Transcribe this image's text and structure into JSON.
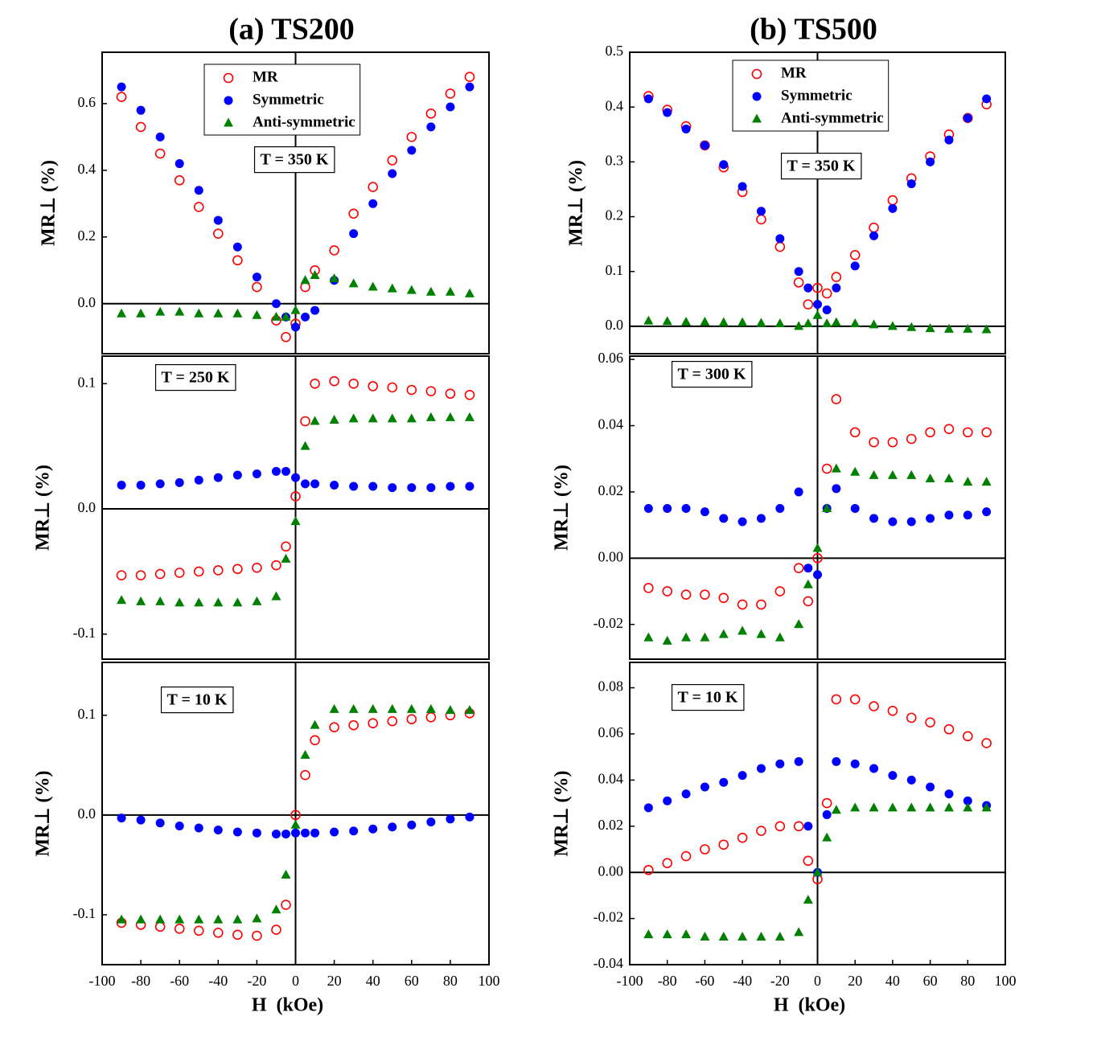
{
  "chart_data": [
    {
      "type": "scatter",
      "title": "(a)  TS200",
      "ylabel": "MR⊥ (%)",
      "annotation": "T = 350 K",
      "legend": "upper center",
      "x": [
        -90,
        -80,
        -70,
        -60,
        -50,
        -40,
        -30,
        -20,
        -10,
        -5,
        0,
        5,
        10,
        20,
        30,
        40,
        50,
        60,
        70,
        80,
        90
      ],
      "xlim": [
        -100,
        100
      ],
      "ylim": [
        -0.15,
        0.754
      ],
      "yticks": [
        {
          "value": 0,
          "label": "0.0"
        },
        0.2,
        0.4,
        0.6
      ],
      "series": [
        {
          "name": "MR",
          "color": "#ff0000",
          "marker": "open-circle",
          "values": [
            0.62,
            0.53,
            0.45,
            0.37,
            0.29,
            0.21,
            0.13,
            0.05,
            -0.05,
            -0.1,
            -0.06,
            0.05,
            0.1,
            0.16,
            0.27,
            0.35,
            0.43,
            0.5,
            0.57,
            0.63,
            0.68
          ]
        },
        {
          "name": "Symmetric",
          "color": "#0000ff",
          "marker": "circle",
          "values": [
            0.65,
            0.58,
            0.5,
            0.42,
            0.34,
            0.25,
            0.17,
            0.08,
            0.0,
            -0.04,
            -0.07,
            -0.04,
            -0.02,
            0.07,
            0.21,
            0.3,
            0.39,
            0.46,
            0.53,
            0.59,
            0.65
          ]
        },
        {
          "name": "Anti-symmetric",
          "color": "#008000",
          "marker": "triangle",
          "values": [
            -0.03,
            -0.03,
            -0.025,
            -0.025,
            -0.03,
            -0.03,
            -0.03,
            -0.035,
            -0.04,
            -0.04,
            -0.02,
            0.07,
            0.085,
            0.075,
            0.06,
            0.05,
            0.045,
            0.04,
            0.035,
            0.035,
            0.03
          ]
        }
      ]
    },
    {
      "type": "scatter",
      "ylabel": "MR⊥ (%)",
      "annotation": "T = 250 K",
      "x": [
        -90,
        -80,
        -70,
        -60,
        -50,
        -40,
        -30,
        -20,
        -10,
        -5,
        0,
        5,
        10,
        20,
        30,
        40,
        50,
        60,
        70,
        80,
        90
      ],
      "xlim": [
        -100,
        100
      ],
      "ylim": [
        -0.12,
        0.122
      ],
      "yticks": [
        -0.1,
        {
          "value": 0,
          "label": "0.0"
        },
        0.1
      ],
      "series": [
        {
          "color": "#ff0000",
          "marker": "open-circle",
          "values": [
            -0.053,
            -0.053,
            -0.052,
            -0.051,
            -0.05,
            -0.049,
            -0.048,
            -0.047,
            -0.045,
            -0.03,
            0.01,
            0.07,
            0.1,
            0.102,
            0.1,
            0.098,
            0.097,
            0.095,
            0.094,
            0.092,
            0.091
          ]
        },
        {
          "color": "#0000ff",
          "marker": "circle",
          "values": [
            0.019,
            0.019,
            0.02,
            0.021,
            0.023,
            0.025,
            0.027,
            0.028,
            0.03,
            0.03,
            0.025,
            0.02,
            0.02,
            0.019,
            0.018,
            0.018,
            0.017,
            0.017,
            0.017,
            0.018,
            0.018
          ]
        },
        {
          "color": "#008000",
          "marker": "triangle",
          "values": [
            -0.073,
            -0.074,
            -0.074,
            -0.075,
            -0.075,
            -0.075,
            -0.075,
            -0.074,
            -0.07,
            -0.04,
            -0.01,
            0.05,
            0.07,
            0.071,
            0.072,
            0.072,
            0.072,
            0.072,
            0.073,
            0.073,
            0.073
          ]
        }
      ]
    },
    {
      "type": "scatter",
      "ylabel": "MR⊥ (%)",
      "xlabel": "H  (kOe)",
      "annotation": "T = 10 K",
      "x": [
        -90,
        -80,
        -70,
        -60,
        -50,
        -40,
        -30,
        -20,
        -10,
        -5,
        0,
        5,
        10,
        20,
        30,
        40,
        50,
        60,
        70,
        80,
        90
      ],
      "xlim": [
        -100,
        100
      ],
      "xticks": [
        -100,
        -80,
        -60,
        -40,
        -20,
        0,
        20,
        40,
        60,
        80,
        100
      ],
      "ylim": [
        -0.15,
        0.153
      ],
      "yticks": [
        -0.1,
        {
          "value": 0,
          "label": "0.0"
        },
        0.1
      ],
      "series": [
        {
          "color": "#ff0000",
          "marker": "open-circle",
          "values": [
            -0.108,
            -0.11,
            -0.112,
            -0.114,
            -0.116,
            -0.118,
            -0.12,
            -0.121,
            -0.115,
            -0.09,
            0.0,
            0.04,
            0.075,
            0.088,
            0.09,
            0.092,
            0.094,
            0.096,
            0.098,
            0.1,
            0.102
          ]
        },
        {
          "color": "#0000ff",
          "marker": "circle",
          "values": [
            -0.003,
            -0.005,
            -0.008,
            -0.011,
            -0.013,
            -0.015,
            -0.017,
            -0.018,
            -0.019,
            -0.019,
            -0.018,
            -0.018,
            -0.018,
            -0.017,
            -0.016,
            -0.014,
            -0.012,
            -0.01,
            -0.007,
            -0.004,
            -0.002
          ]
        },
        {
          "color": "#008000",
          "marker": "triangle",
          "values": [
            -0.105,
            -0.105,
            -0.105,
            -0.105,
            -0.105,
            -0.105,
            -0.105,
            -0.104,
            -0.095,
            -0.06,
            -0.01,
            0.06,
            0.09,
            0.106,
            0.106,
            0.106,
            0.106,
            0.106,
            0.106,
            0.105,
            0.105
          ]
        }
      ]
    },
    {
      "type": "scatter",
      "title": "(b)  TS500",
      "ylabel": "MR⊥ (%)",
      "annotation": "T = 350 K",
      "legend": "upper center",
      "x": [
        -90,
        -80,
        -70,
        -60,
        -50,
        -40,
        -30,
        -20,
        -10,
        -5,
        0,
        5,
        10,
        20,
        30,
        40,
        50,
        60,
        70,
        80,
        90
      ],
      "xlim": [
        -100,
        100
      ],
      "ylim": [
        -0.05,
        0.5
      ],
      "yticks": [
        {
          "value": 0,
          "label": "0.0"
        },
        0.1,
        0.2,
        0.3,
        0.4,
        0.5
      ],
      "series": [
        {
          "name": "MR",
          "color": "#ff0000",
          "marker": "open-circle",
          "values": [
            0.42,
            0.395,
            0.365,
            0.33,
            0.29,
            0.245,
            0.195,
            0.145,
            0.08,
            0.04,
            0.07,
            0.06,
            0.09,
            0.13,
            0.18,
            0.23,
            0.27,
            0.31,
            0.35,
            0.38,
            0.405
          ]
        },
        {
          "name": "Symmetric",
          "color": "#0000ff",
          "marker": "circle",
          "values": [
            0.415,
            0.39,
            0.36,
            0.33,
            0.295,
            0.255,
            0.21,
            0.16,
            0.1,
            0.07,
            0.04,
            0.03,
            0.07,
            0.11,
            0.165,
            0.215,
            0.26,
            0.3,
            0.34,
            0.38,
            0.415
          ]
        },
        {
          "name": "Anti-symmetric",
          "color": "#008000",
          "marker": "triangle",
          "values": [
            0.01,
            0.009,
            0.008,
            0.008,
            0.007,
            0.007,
            0.006,
            0.005,
            0.0,
            0.005,
            0.02,
            0.005,
            0.007,
            0.005,
            0.003,
            0.0,
            -0.002,
            -0.004,
            -0.005,
            -0.005,
            -0.006
          ]
        }
      ]
    },
    {
      "type": "scatter",
      "ylabel": "MR⊥ (%)",
      "annotation": "T = 300 K",
      "x": [
        -90,
        -80,
        -70,
        -60,
        -50,
        -40,
        -30,
        -20,
        -10,
        -5,
        0,
        5,
        10,
        20,
        30,
        40,
        50,
        60,
        70,
        80,
        90
      ],
      "xlim": [
        -100,
        100
      ],
      "ylim": [
        -0.0305,
        0.061
      ],
      "yticks": [
        -0.02,
        {
          "value": 0,
          "label": "0.00"
        },
        0.02,
        0.04,
        0.06
      ],
      "series": [
        {
          "color": "#ff0000",
          "marker": "open-circle",
          "values": [
            -0.009,
            -0.01,
            -0.011,
            -0.011,
            -0.012,
            -0.014,
            -0.014,
            -0.01,
            -0.003,
            -0.013,
            0.0,
            0.027,
            0.048,
            0.038,
            0.035,
            0.035,
            0.036,
            0.038,
            0.039,
            0.038,
            0.038
          ]
        },
        {
          "color": "#0000ff",
          "marker": "circle",
          "values": [
            0.015,
            0.015,
            0.015,
            0.014,
            0.012,
            0.011,
            0.012,
            0.015,
            0.02,
            -0.003,
            -0.005,
            0.015,
            0.021,
            0.015,
            0.012,
            0.011,
            0.011,
            0.012,
            0.013,
            0.013,
            0.014
          ]
        },
        {
          "color": "#008000",
          "marker": "triangle",
          "values": [
            -0.024,
            -0.025,
            -0.024,
            -0.024,
            -0.023,
            -0.022,
            -0.023,
            -0.024,
            -0.02,
            -0.008,
            0.003,
            0.015,
            0.027,
            0.026,
            0.025,
            0.025,
            0.025,
            0.024,
            0.024,
            0.023,
            0.023
          ]
        }
      ]
    },
    {
      "type": "scatter",
      "ylabel": "MR⊥ (%)",
      "xlabel": "H  (kOe)",
      "annotation": "T = 10 K",
      "x": [
        -90,
        -80,
        -70,
        -60,
        -50,
        -40,
        -30,
        -20,
        -10,
        -5,
        0,
        5,
        10,
        20,
        30,
        40,
        50,
        60,
        70,
        80,
        90
      ],
      "xlim": [
        -100,
        100
      ],
      "xticks": [
        -100,
        -80,
        -60,
        -40,
        -20,
        0,
        20,
        40,
        60,
        80,
        100
      ],
      "ylim": [
        -0.04,
        0.091
      ],
      "yticks": [
        -0.04,
        -0.02,
        {
          "value": 0,
          "label": "0.00"
        },
        0.02,
        0.04,
        0.06,
        0.08
      ],
      "series": [
        {
          "color": "#ff0000",
          "marker": "open-circle",
          "values": [
            0.001,
            0.004,
            0.007,
            0.01,
            0.012,
            0.015,
            0.018,
            0.02,
            0.02,
            0.005,
            -0.003,
            0.03,
            0.075,
            0.075,
            0.072,
            0.07,
            0.067,
            0.065,
            0.062,
            0.059,
            0.056
          ]
        },
        {
          "color": "#0000ff",
          "marker": "circle",
          "values": [
            0.028,
            0.031,
            0.034,
            0.037,
            0.039,
            0.042,
            0.045,
            0.047,
            0.048,
            0.02,
            0.0,
            0.025,
            0.048,
            0.047,
            0.045,
            0.042,
            0.04,
            0.037,
            0.034,
            0.031,
            0.029
          ]
        },
        {
          "color": "#008000",
          "marker": "triangle",
          "values": [
            -0.027,
            -0.027,
            -0.027,
            -0.028,
            -0.028,
            -0.028,
            -0.028,
            -0.028,
            -0.026,
            -0.012,
            0.0,
            0.015,
            0.027,
            0.028,
            0.028,
            0.028,
            0.028,
            0.028,
            0.028,
            0.028,
            0.028
          ]
        }
      ]
    }
  ]
}
